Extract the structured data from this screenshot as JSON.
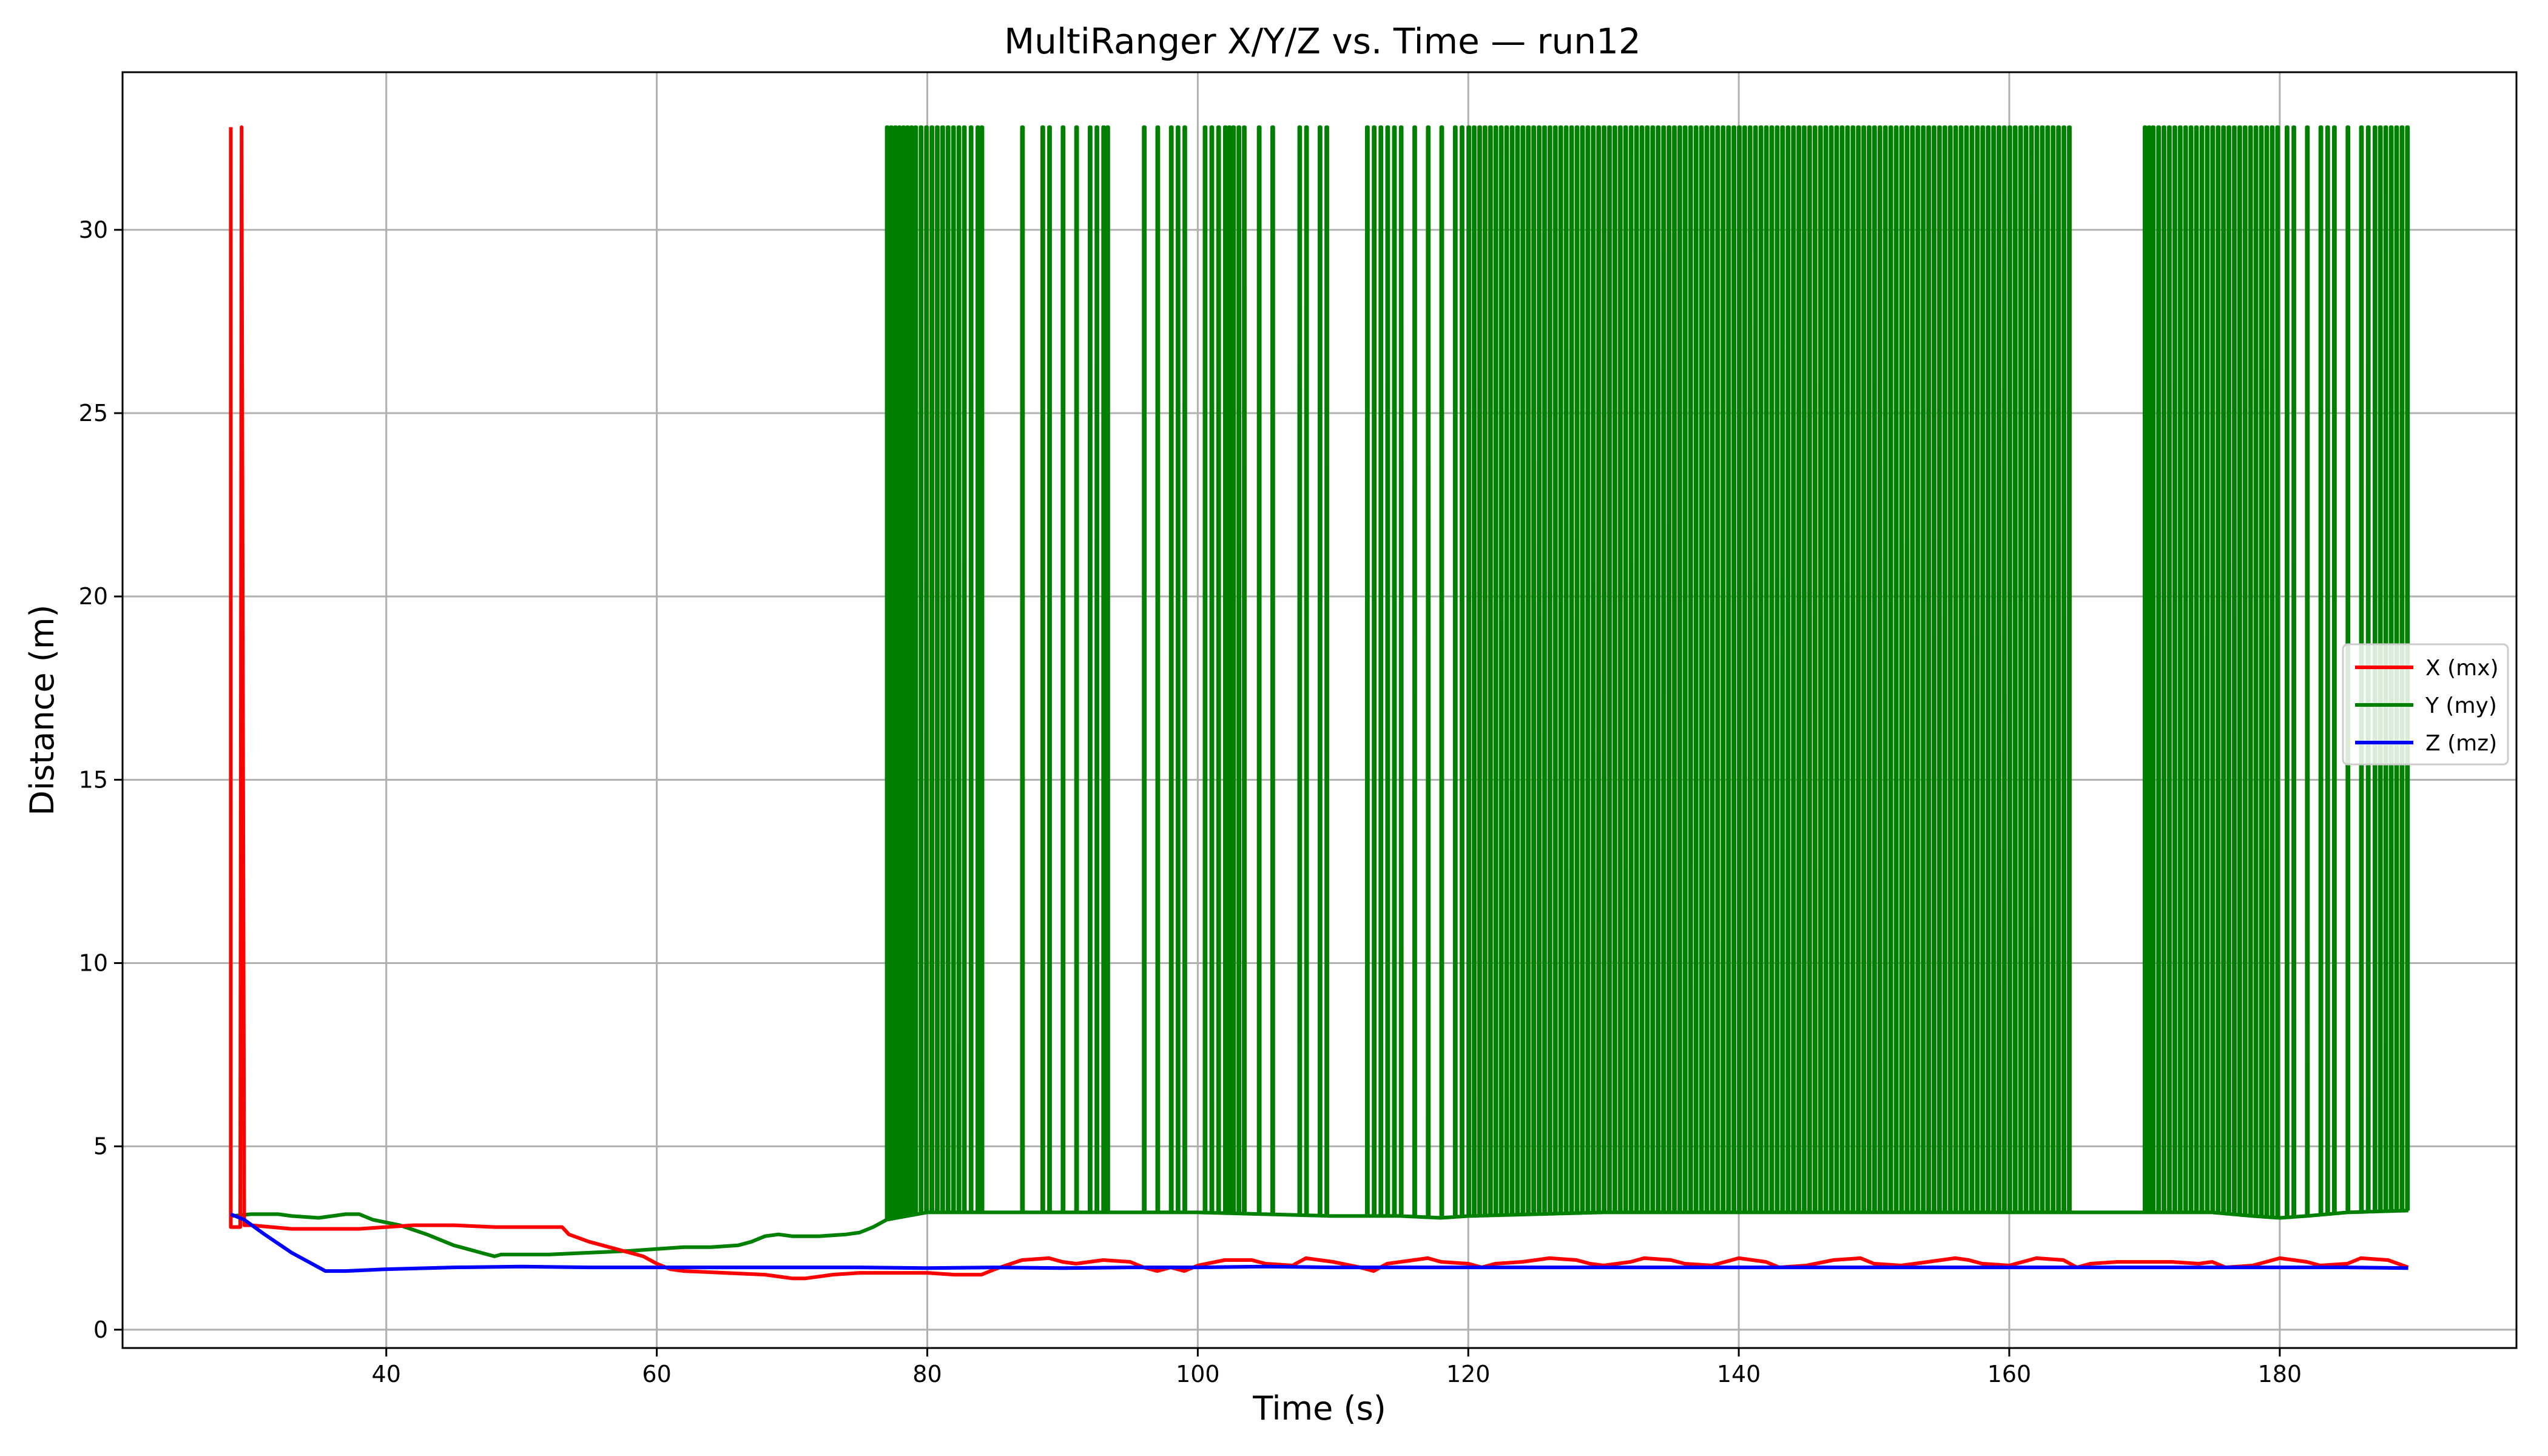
{
  "chart_data": {
    "type": "line",
    "title": "MultiRanger X/Y/Z vs. Time — run12",
    "xlabel": "Time (s)",
    "ylabel": "Distance (m)",
    "xlim": [
      20.5,
      197.5
    ],
    "ylim": [
      -0.5,
      34.3
    ],
    "xticks": [
      40,
      60,
      80,
      100,
      120,
      140,
      160,
      180
    ],
    "yticks": [
      0,
      5,
      10,
      15,
      20,
      25,
      30
    ],
    "grid": true,
    "legend_position": "center-right",
    "series": [
      {
        "name": "X (mx)",
        "color": "#ff0000",
        "x": [
          28.5,
          28.5,
          28.7,
          28.8,
          29.2,
          29.3,
          29.5,
          30.0,
          33.0,
          35.0,
          38.0,
          40.0,
          42.0,
          45.0,
          48.0,
          50.0,
          53.0,
          53.5,
          55.0,
          57.0,
          59.0,
          60.0,
          61.0,
          62.0,
          65.0,
          68.0,
          70.0,
          71.0,
          72.0,
          73.0,
          75.0,
          78.0,
          80.0,
          82.0,
          84.0,
          85.0,
          87.0,
          89.0,
          90.0,
          91.0,
          93.0,
          95.0,
          96.0,
          97.0,
          98.0,
          99.0,
          100.0,
          102.0,
          104.0,
          105.0,
          107.0,
          108.0,
          109.0,
          110.0,
          112.0,
          113.0,
          114.0,
          115.0,
          117.0,
          118.0,
          120.0,
          121.0,
          122.0,
          124.0,
          126.0,
          128.0,
          129.0,
          130.0,
          132.0,
          133.0,
          135.0,
          136.0,
          138.0,
          140.0,
          142.0,
          143.0,
          145.0,
          147.0,
          149.0,
          150.0,
          152.0,
          154.0,
          156.0,
          157.0,
          158.0,
          160.0,
          162.0,
          164.0,
          165.0,
          166.0,
          168.0,
          170.0,
          172.0,
          174.0,
          175.0,
          176.0,
          178.0,
          180.0,
          182.0,
          183.0,
          185.0,
          186.0,
          188.0,
          189.5
        ],
        "y": [
          32.8,
          2.8,
          2.8,
          2.8,
          2.8,
          32.8,
          2.85,
          2.85,
          2.75,
          2.75,
          2.75,
          2.8,
          2.85,
          2.85,
          2.8,
          2.8,
          2.8,
          2.6,
          2.4,
          2.2,
          2.0,
          1.8,
          1.65,
          1.6,
          1.55,
          1.5,
          1.4,
          1.4,
          1.45,
          1.5,
          1.55,
          1.55,
          1.55,
          1.5,
          1.5,
          1.65,
          1.9,
          1.95,
          1.85,
          1.8,
          1.9,
          1.85,
          1.7,
          1.6,
          1.7,
          1.6,
          1.75,
          1.9,
          1.9,
          1.8,
          1.75,
          1.95,
          1.9,
          1.85,
          1.7,
          1.6,
          1.8,
          1.85,
          1.95,
          1.85,
          1.8,
          1.7,
          1.8,
          1.85,
          1.95,
          1.9,
          1.8,
          1.75,
          1.85,
          1.95,
          1.9,
          1.8,
          1.75,
          1.95,
          1.85,
          1.7,
          1.75,
          1.9,
          1.95,
          1.8,
          1.75,
          1.85,
          1.95,
          1.9,
          1.8,
          1.75,
          1.95,
          1.9,
          1.7,
          1.8,
          1.85,
          1.85,
          1.85,
          1.8,
          1.85,
          1.7,
          1.75,
          1.95,
          1.85,
          1.75,
          1.8,
          1.95,
          1.9,
          1.7
        ]
      },
      {
        "name": "Y (my)",
        "color": "#008000",
        "x": [
          28.6,
          30.0,
          32.0,
          33.0,
          35.0,
          37.0,
          38.0,
          39.0,
          41.0,
          43.0,
          45.0,
          46.0,
          47.0,
          48.0,
          48.5,
          50.0,
          52.0,
          55.0,
          58.0,
          60.0,
          62.0,
          64.0,
          66.0,
          67.0,
          68.0,
          69.0,
          70.0,
          72.0,
          74.0,
          75.0,
          76.0,
          77.0,
          80.0,
          85.0,
          90.0,
          95.0,
          100.0,
          105.0,
          110.0,
          115.0,
          118.0,
          120.0,
          125.0,
          130.0,
          135.0,
          140.0,
          145.0,
          150.0,
          155.0,
          160.0,
          165.0,
          170.0,
          175.0,
          178.0,
          180.0,
          182.0,
          185.0,
          189.5
        ],
        "y": [
          3.1,
          3.15,
          3.15,
          3.1,
          3.05,
          3.15,
          3.15,
          3.0,
          2.85,
          2.6,
          2.3,
          2.2,
          2.1,
          2.0,
          2.05,
          2.05,
          2.05,
          2.1,
          2.15,
          2.2,
          2.25,
          2.25,
          2.3,
          2.4,
          2.55,
          2.6,
          2.55,
          2.55,
          2.6,
          2.65,
          2.8,
          3.0,
          3.2,
          3.2,
          3.2,
          3.2,
          3.2,
          3.15,
          3.1,
          3.1,
          3.05,
          3.1,
          3.15,
          3.2,
          3.2,
          3.2,
          3.2,
          3.2,
          3.2,
          3.2,
          3.2,
          3.2,
          3.2,
          3.1,
          3.05,
          3.1,
          3.2,
          3.25
        ],
        "spike_value": 32.8,
        "spike_times": [
          77.0,
          77.3,
          77.6,
          77.9,
          78.2,
          78.5,
          78.8,
          79.1,
          79.5,
          79.9,
          80.3,
          80.7,
          81.1,
          81.5,
          81.9,
          82.3,
          82.7,
          83.2,
          83.7,
          84.0,
          87.0,
          88.5,
          89.0,
          90.0,
          91.0,
          92.0,
          92.5,
          93.0,
          93.3,
          96.0,
          97.0,
          98.0,
          98.5,
          99.0,
          100.5,
          101.0,
          101.5,
          102.0,
          102.3,
          102.6,
          103.0,
          103.4,
          104.5,
          105.5,
          107.5,
          108.0,
          109.0,
          109.5,
          112.5,
          113.0,
          113.5,
          114.0,
          114.5,
          115.0,
          116.0,
          117.0,
          118.0,
          119.0,
          119.5,
          120.0,
          120.4,
          120.8,
          121.2,
          121.6,
          122.0,
          122.4,
          122.8,
          123.2,
          123.6,
          124.0,
          124.4,
          124.8,
          125.2,
          125.6,
          126.0,
          126.4,
          126.8,
          127.2,
          127.6,
          128.0,
          128.4,
          128.8,
          129.2,
          129.6,
          130.0,
          130.4,
          130.8,
          131.2,
          131.6,
          132.0,
          132.4,
          132.8,
          133.2,
          133.6,
          134.0,
          134.4,
          134.8,
          135.2,
          135.6,
          136.0,
          136.4,
          136.8,
          137.2,
          137.6,
          138.0,
          138.4,
          138.8,
          139.2,
          139.6,
          140.0,
          140.4,
          140.8,
          141.2,
          141.6,
          142.0,
          142.4,
          142.8,
          143.2,
          143.6,
          144.0,
          144.4,
          144.8,
          145.2,
          145.6,
          146.0,
          146.4,
          146.8,
          147.2,
          147.6,
          148.0,
          148.4,
          148.8,
          149.2,
          149.6,
          150.0,
          150.4,
          150.8,
          151.2,
          151.6,
          152.0,
          152.4,
          152.8,
          153.2,
          153.6,
          154.0,
          154.4,
          154.8,
          155.2,
          155.6,
          156.0,
          156.4,
          156.8,
          157.2,
          157.6,
          158.0,
          158.4,
          158.8,
          159.2,
          159.6,
          160.0,
          160.4,
          160.8,
          161.2,
          161.6,
          162.0,
          162.4,
          162.8,
          163.2,
          163.6,
          164.0,
          164.4,
          170.0,
          170.3,
          170.6,
          171.0,
          171.4,
          171.8,
          172.2,
          172.6,
          173.0,
          173.4,
          173.8,
          174.2,
          174.6,
          175.0,
          175.4,
          175.8,
          176.2,
          176.6,
          177.0,
          177.4,
          177.8,
          178.2,
          178.6,
          179.0,
          179.4,
          179.8,
          180.5,
          181.0,
          182.0,
          183.0,
          183.5,
          184.0,
          185.0,
          186.0,
          186.5,
          187.0,
          187.4,
          187.8,
          188.2,
          188.6,
          189.0,
          189.4
        ]
      },
      {
        "name": "Z (mz)",
        "color": "#0000ff",
        "x": [
          28.5,
          29.5,
          31.0,
          33.0,
          35.5,
          37.0,
          40.0,
          45.0,
          50.0,
          55.0,
          60.0,
          65.0,
          70.0,
          75.0,
          80.0,
          85.0,
          90.0,
          95.0,
          100.0,
          105.0,
          110.0,
          115.0,
          120.0,
          125.0,
          130.0,
          135.0,
          140.0,
          145.0,
          150.0,
          155.0,
          160.0,
          165.0,
          170.0,
          175.0,
          180.0,
          185.0,
          189.5
        ],
        "y": [
          3.15,
          3.0,
          2.6,
          2.1,
          1.6,
          1.6,
          1.65,
          1.7,
          1.72,
          1.7,
          1.7,
          1.7,
          1.7,
          1.7,
          1.68,
          1.7,
          1.68,
          1.7,
          1.7,
          1.72,
          1.7,
          1.7,
          1.7,
          1.7,
          1.7,
          1.7,
          1.7,
          1.7,
          1.7,
          1.7,
          1.7,
          1.7,
          1.7,
          1.7,
          1.7,
          1.7,
          1.68
        ]
      }
    ]
  }
}
